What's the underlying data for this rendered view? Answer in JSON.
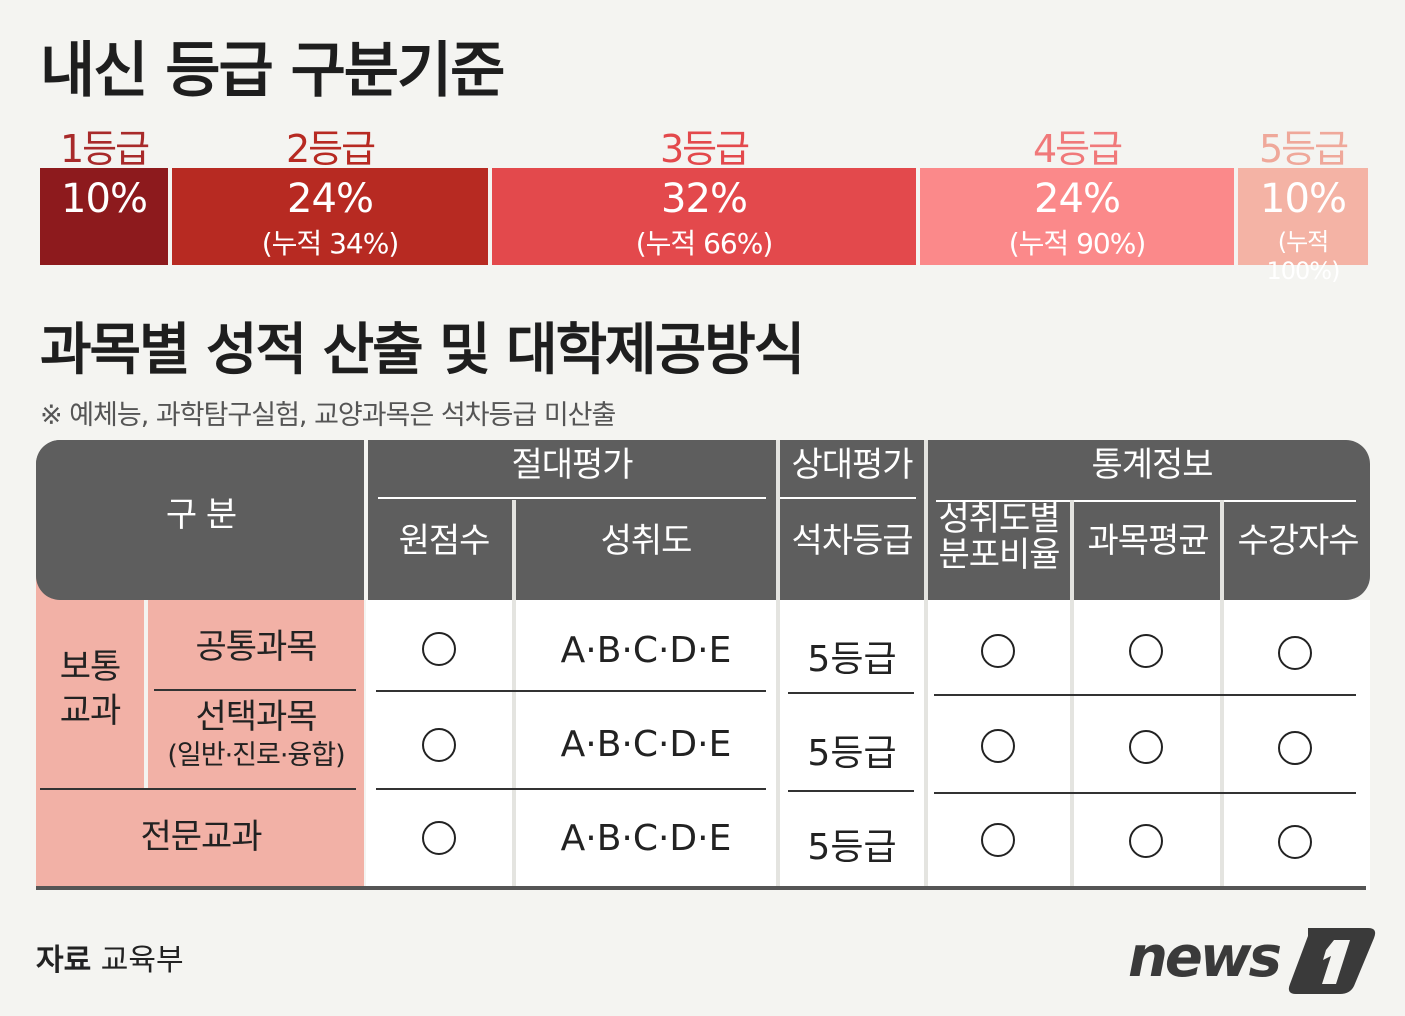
{
  "title1": "내신 등급 구분기준",
  "grades": [
    {
      "label": "1등급",
      "pct": "10%",
      "cum": "",
      "color": "#8d1a1d",
      "label_color": "#a82a2a"
    },
    {
      "label": "2등급",
      "pct": "24%",
      "cum": "(누적 34%)",
      "color": "#b72a22",
      "label_color": "#b72a22"
    },
    {
      "label": "3등급",
      "pct": "32%",
      "cum": "(누적 66%)",
      "color": "#e3494c",
      "label_color": "#e3494c"
    },
    {
      "label": "4등급",
      "pct": "24%",
      "cum": "(누적 90%)",
      "color": "#fb898a",
      "label_color": "#f0797a"
    },
    {
      "label": "5등급",
      "pct": "10%",
      "cum": "(누적 100%)",
      "color": "#f4b3a5",
      "label_color": "#efa89a"
    }
  ],
  "title2": "과목별 성적 산출 및 대학제공방식",
  "note": "※ 예체능, 과학탐구실험, 교양과목은 석차등급 미산출",
  "table": {
    "header": {
      "category": "구 분",
      "groups": [
        "절대평가",
        "상대평가",
        "통계정보"
      ],
      "columns": [
        "원점수",
        "성취도",
        "석차등급",
        "성취도별 분포비율",
        "과목평균",
        "수강자수"
      ]
    },
    "group_label": "보통\n교과",
    "rows": [
      {
        "label": "공통과목",
        "sub": "",
        "achievement": "A·B·C·D·E",
        "rank": "5등급"
      },
      {
        "label": "선택과목",
        "sub": "(일반·진로·융합)",
        "achievement": "A·B·C·D·E",
        "rank": "5등급"
      },
      {
        "label": "전문교과",
        "sub": "",
        "achievement": "A·B·C·D·E",
        "rank": "5등급"
      }
    ]
  },
  "source_label": "자료",
  "source_value": "교육부",
  "logo_text": "news1"
}
